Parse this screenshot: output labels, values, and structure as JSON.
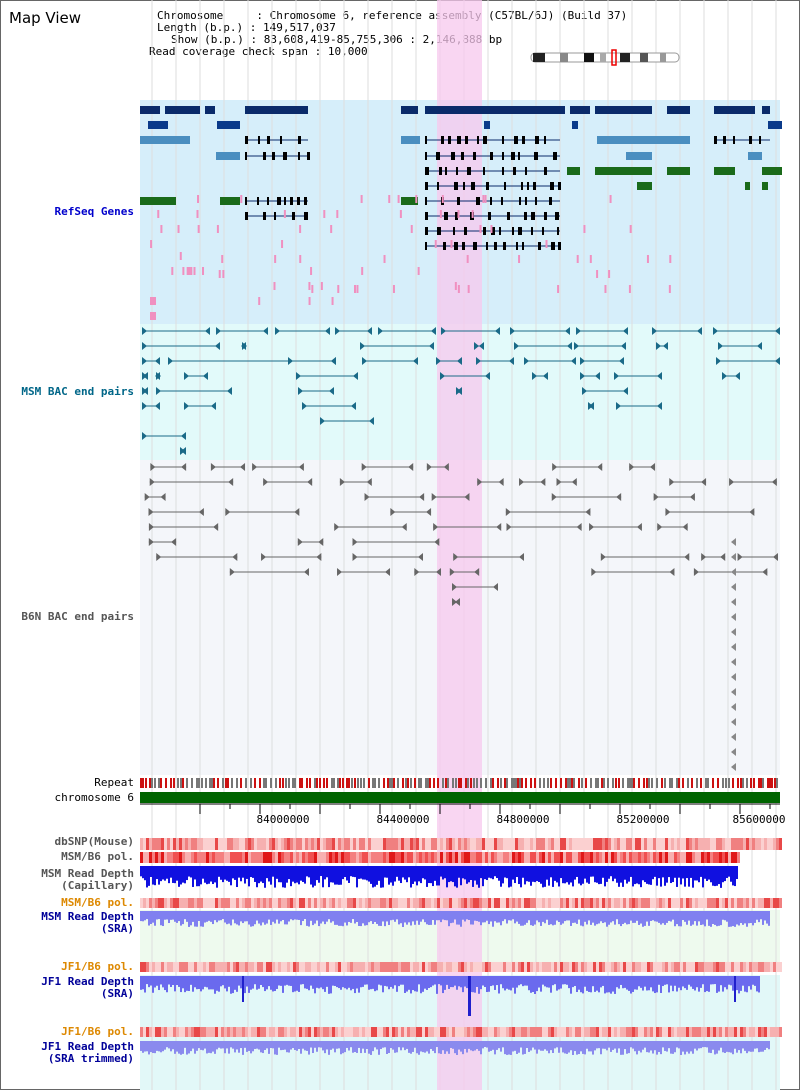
{
  "title": "Map View",
  "info": {
    "chromosome_key": "Chromosome",
    "chromosome_val": "Chromosome 6, reference assembly (C57BL/6J) (Build 37)",
    "length_key": "Length (b.p.)",
    "length_val": "149,517,037",
    "show_key": "Show (b.p.)",
    "show_val": "83,608,419-85,755,306 : 2,146,888 bp",
    "coverage_key": "Read coverage check span",
    "coverage_val": "10,000"
  },
  "tracks": {
    "refseq": "RefSeq Genes",
    "msm_bac": "MSM BAC end pairs",
    "b6n_bac": "B6N BAC end pairs",
    "repeat": "Repeat",
    "chromosome": "chromosome 6",
    "dbsnp": "dbSNP(Mouse)",
    "msm_b6_pol": "MSM/B6 pol.",
    "msm_depth_cap": "MSM Read Depth\n(Capillary)",
    "msm_b6_pol2": "MSM/B6 pol.",
    "msm_depth_sra": "MSM Read Depth\n(SRA)",
    "jf1_b6_pol": "JF1/B6 pol.",
    "jf1_depth_sra": "JF1 Read Depth\n(SRA)",
    "jf1_b6_pol2": "JF1/B6 pol.",
    "jf1_depth_trim": "JF1 Read Depth\n(SRA trimmed)"
  },
  "ruler": {
    "ticks": [
      "84000000",
      "84400000",
      "84800000",
      "85200000",
      "85600000"
    ]
  },
  "colors": {
    "refseq_label": "#0000cc",
    "msm_label": "#006688",
    "b6n_label": "#555555",
    "pol_orange": "#dd8800",
    "depth_blue": "#000099",
    "highlight": "#f7d0f0",
    "chromosome_bar": "#006400"
  }
}
